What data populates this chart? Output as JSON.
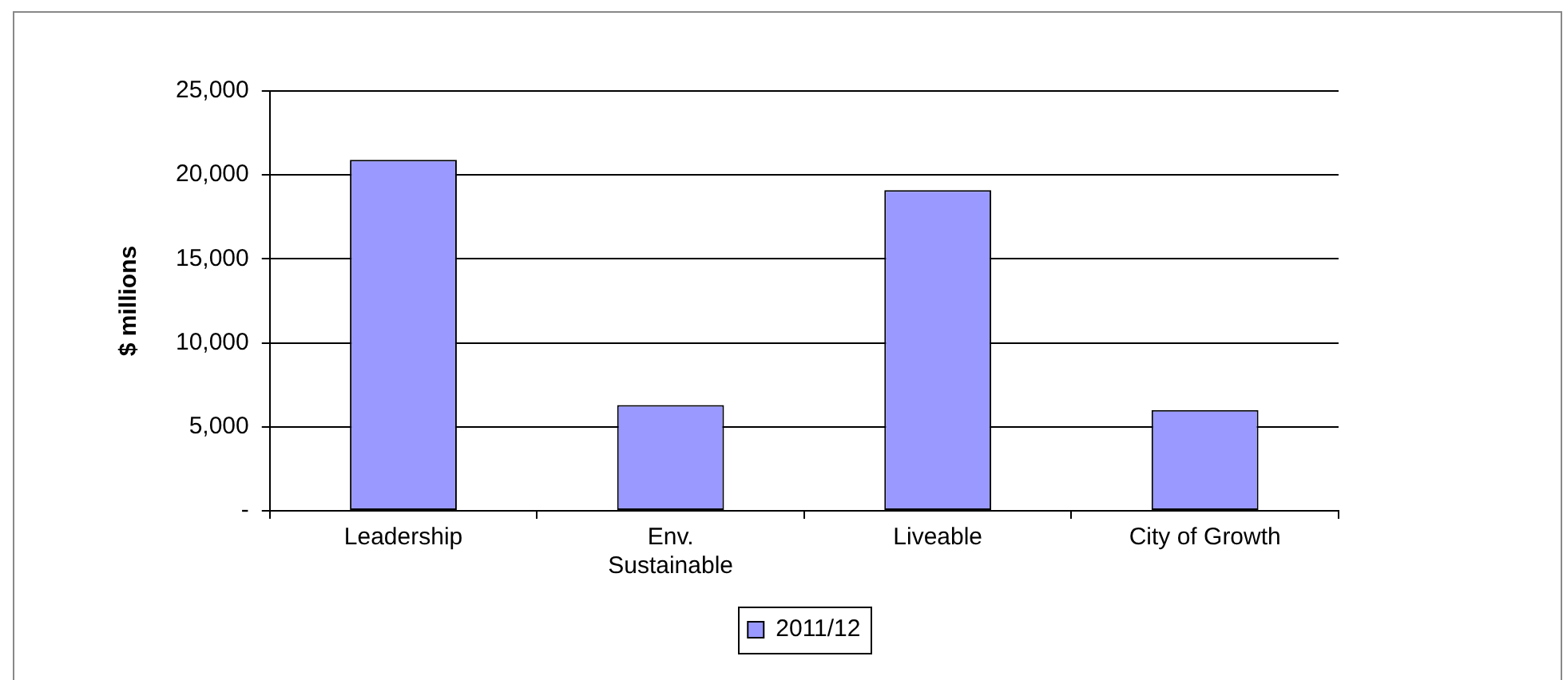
{
  "chart_data": {
    "type": "bar",
    "ylabel": "$ millions",
    "categories": [
      "Leadership",
      "Env.\nSustainable",
      "Liveable",
      "City of Growth"
    ],
    "series": [
      {
        "name": "2011/12",
        "color": "#9999ff",
        "values": [
          20900,
          6300,
          19100,
          6000
        ]
      }
    ],
    "ylim": [
      0,
      25000
    ],
    "yticks": [
      {
        "value": 0,
        "label": "-"
      },
      {
        "value": 5000,
        "label": "5,000"
      },
      {
        "value": 10000,
        "label": "10,000"
      },
      {
        "value": 15000,
        "label": "15,000"
      },
      {
        "value": 20000,
        "label": "20,000"
      },
      {
        "value": 25000,
        "label": "25,000"
      }
    ],
    "grid": "y",
    "legend": "bottom"
  }
}
